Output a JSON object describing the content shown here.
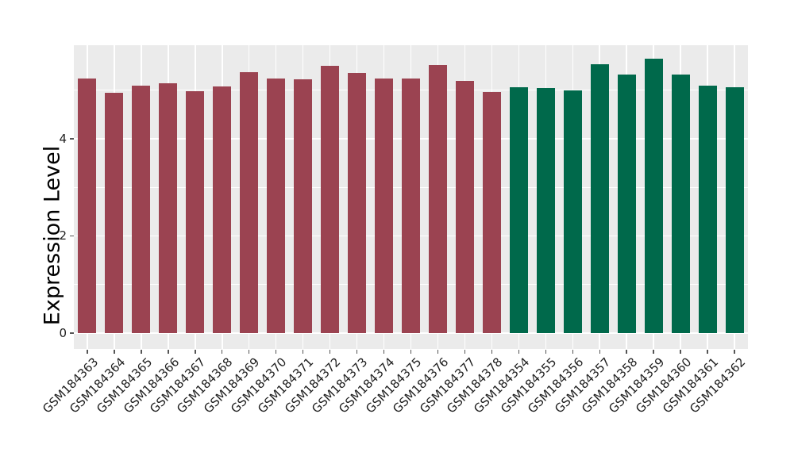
{
  "chart_data": {
    "type": "bar",
    "title": "",
    "xlabel": "",
    "ylabel": "Expression Level",
    "legend": "none",
    "grid": "on",
    "panel_background": "#EBEBEB",
    "grid_color": "#FFFFFF",
    "tick_color": "#555555",
    "group_colors": {
      "left_group": "#9B4351",
      "right_group": "#00694B"
    },
    "yticks": [
      0,
      2,
      4
    ],
    "yticks_minor": [
      1,
      3,
      5
    ],
    "ylim": [
      -0.33,
      5.93
    ],
    "categories": [
      "GSM184363",
      "GSM184364",
      "GSM184365",
      "GSM184366",
      "GSM184367",
      "GSM184368",
      "GSM184369",
      "GSM184370",
      "GSM184371",
      "GSM184372",
      "GSM184373",
      "GSM184374",
      "GSM184375",
      "GSM184376",
      "GSM184377",
      "GSM184378",
      "GSM184354",
      "GSM184355",
      "GSM184356",
      "GSM184357",
      "GSM184358",
      "GSM184359",
      "GSM184360",
      "GSM184361",
      "GSM184362"
    ],
    "values": [
      5.24,
      4.95,
      5.09,
      5.15,
      4.98,
      5.08,
      5.38,
      5.24,
      5.22,
      5.5,
      5.35,
      5.25,
      5.25,
      5.52,
      5.19,
      4.97,
      5.06,
      5.04,
      5.0,
      5.54,
      5.33,
      5.66,
      5.33,
      5.09,
      5.07
    ],
    "bar_colors": [
      "#9B4351",
      "#9B4351",
      "#9B4351",
      "#9B4351",
      "#9B4351",
      "#9B4351",
      "#9B4351",
      "#9B4351",
      "#9B4351",
      "#9B4351",
      "#9B4351",
      "#9B4351",
      "#9B4351",
      "#9B4351",
      "#9B4351",
      "#9B4351",
      "#00694B",
      "#00694B",
      "#00694B",
      "#00694B",
      "#00694B",
      "#00694B",
      "#00694B",
      "#00694B",
      "#00694B"
    ]
  }
}
